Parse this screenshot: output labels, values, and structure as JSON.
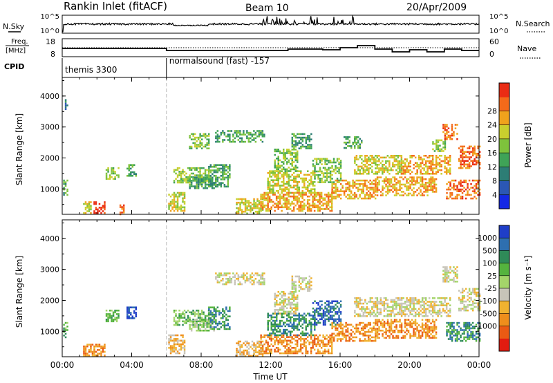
{
  "header": {
    "station": "Rankin Inlet (fitACF)",
    "beam": "Beam 10",
    "date": "20/Apr/2009"
  },
  "status_strip": {
    "nsky_label": "N.Sky",
    "nsky_ticks": [
      "10^5",
      "10^0"
    ],
    "nsearch_label": "N.Search",
    "nsearch_ticks": [
      "10^5",
      "10^0"
    ],
    "freq_label_1": "Freq.",
    "freq_label_2": "[MHz]",
    "freq_ticks": [
      "18",
      "8"
    ],
    "nave_label": "Nave",
    "nave_ticks": [
      "60",
      "0"
    ],
    "cpid_label": "CPID",
    "cpid_segments": [
      {
        "start_hour": 0,
        "end_hour": 6,
        "label": "themis 3300"
      },
      {
        "start_hour": 6,
        "end_hour": 24,
        "label": "normalsound (fast) -157"
      }
    ]
  },
  "chart_data": [
    {
      "type": "heatmap",
      "panel": "power",
      "ylabel": "Slant Range [km]",
      "xlim": [
        0,
        24
      ],
      "ylim": [
        180,
        4600
      ],
      "y_ticks": [
        1000,
        2000,
        3000,
        4000
      ],
      "colorbar": {
        "label": "Power [dB]",
        "ticks": [
          "4",
          "8",
          "12",
          "16",
          "20",
          "24",
          "28"
        ],
        "colors": [
          "#1428e6",
          "#2b57b4",
          "#2d7d75",
          "#3fa357",
          "#7ec23c",
          "#c9cf2e",
          "#f0a21c",
          "#f46a1a",
          "#ea2c14"
        ]
      },
      "regions": [
        {
          "t": [
            0.05,
            0.3
          ],
          "r": [
            800,
            1300
          ],
          "v": 3
        },
        {
          "t": [
            0.15,
            0.3
          ],
          "r": [
            3600,
            3900
          ],
          "v": 2
        },
        {
          "t": [
            1.2,
            1.6
          ],
          "r": [
            200,
            600
          ],
          "v": 5
        },
        {
          "t": [
            1.8,
            2.4
          ],
          "r": [
            200,
            600
          ],
          "v": 8
        },
        {
          "t": [
            2.5,
            3.2
          ],
          "r": [
            1300,
            1700
          ],
          "v": 4
        },
        {
          "t": [
            3.3,
            3.5
          ],
          "r": [
            200,
            500
          ],
          "v": 7
        },
        {
          "t": [
            3.7,
            4.2
          ],
          "r": [
            1400,
            1800
          ],
          "v": 3
        },
        {
          "t": [
            6.1,
            7.0
          ],
          "r": [
            300,
            900
          ],
          "v": 5
        },
        {
          "t": [
            6.4,
            8.4
          ],
          "r": [
            1200,
            1700
          ],
          "v": 4
        },
        {
          "t": [
            7.3,
            8.8
          ],
          "r": [
            1000,
            1400
          ],
          "v": 3
        },
        {
          "t": [
            7.3,
            8.4
          ],
          "r": [
            2300,
            2800
          ],
          "v": 4
        },
        {
          "t": [
            8.4,
            9.6
          ],
          "r": [
            1100,
            1800
          ],
          "v": 3
        },
        {
          "t": [
            8.8,
            11.6
          ],
          "r": [
            2500,
            2900
          ],
          "v": 3
        },
        {
          "t": [
            10.0,
            11.5
          ],
          "r": [
            200,
            700
          ],
          "v": 5
        },
        {
          "t": [
            11.4,
            15.5
          ],
          "r": [
            300,
            900
          ],
          "v": 6
        },
        {
          "t": [
            11.8,
            14.5
          ],
          "r": [
            900,
            1600
          ],
          "v": 5
        },
        {
          "t": [
            12.2,
            13.5
          ],
          "r": [
            1600,
            2300
          ],
          "v": 4
        },
        {
          "t": [
            13.2,
            14.3
          ],
          "r": [
            2300,
            2800
          ],
          "v": 3
        },
        {
          "t": [
            14.4,
            16.0
          ],
          "r": [
            1200,
            2000
          ],
          "v": 4
        },
        {
          "t": [
            15.5,
            18.0
          ],
          "r": [
            700,
            1300
          ],
          "v": 6
        },
        {
          "t": [
            16.2,
            17.2
          ],
          "r": [
            2300,
            2700
          ],
          "v": 3
        },
        {
          "t": [
            16.8,
            19.5
          ],
          "r": [
            1500,
            2100
          ],
          "v": 5
        },
        {
          "t": [
            18.0,
            21.5
          ],
          "r": [
            800,
            1400
          ],
          "v": 6
        },
        {
          "t": [
            19.5,
            22.3
          ],
          "r": [
            1500,
            2100
          ],
          "v": 6
        },
        {
          "t": [
            21.3,
            22.0
          ],
          "r": [
            2200,
            2600
          ],
          "v": 4
        },
        {
          "t": [
            21.9,
            22.7
          ],
          "r": [
            2600,
            3100
          ],
          "v": 7
        },
        {
          "t": [
            22.1,
            24.0
          ],
          "r": [
            700,
            1300
          ],
          "v": 7
        },
        {
          "t": [
            22.8,
            24.0
          ],
          "r": [
            1700,
            2400
          ],
          "v": 7
        }
      ]
    },
    {
      "type": "heatmap",
      "panel": "velocity",
      "xlabel": "Time UT",
      "ylabel": "Slant Range [km]",
      "xlim": [
        0,
        24
      ],
      "ylim": [
        180,
        4600
      ],
      "x_ticks": [
        "00:00",
        "04:00",
        "08:00",
        "12:00",
        "16:00",
        "20:00",
        "00:00"
      ],
      "y_ticks": [
        1000,
        2000,
        3000,
        4000
      ],
      "colorbar": {
        "label": "Velocity [m s⁻¹]",
        "ticks": [
          "1000",
          "500",
          "100",
          "25",
          "-25",
          "-100",
          "-500",
          "-1000"
        ],
        "colors": [
          "#1f3ec8",
          "#2e6fb0",
          "#2f8a58",
          "#55b33e",
          "#a4d46a",
          "#c7c4b8",
          "#f0b230",
          "#ee8e1c",
          "#ea5a14",
          "#e21c10"
        ]
      },
      "regions": [
        {
          "t": [
            0.05,
            0.3
          ],
          "r": [
            800,
            1300
          ],
          "v": 3
        },
        {
          "t": [
            1.2,
            2.4
          ],
          "r": [
            200,
            600
          ],
          "v": 7
        },
        {
          "t": [
            2.5,
            3.2
          ],
          "r": [
            1300,
            1700
          ],
          "v": 3
        },
        {
          "t": [
            3.7,
            4.2
          ],
          "r": [
            1400,
            1800
          ],
          "v": 0
        },
        {
          "t": [
            6.1,
            7.0
          ],
          "r": [
            300,
            900
          ],
          "v": 6
        },
        {
          "t": [
            6.4,
            8.4
          ],
          "r": [
            1200,
            1700
          ],
          "v": 3
        },
        {
          "t": [
            7.3,
            8.8
          ],
          "r": [
            1000,
            1400
          ],
          "v": 4
        },
        {
          "t": [
            8.4,
            9.6
          ],
          "r": [
            1100,
            1800
          ],
          "v": 2
        },
        {
          "t": [
            8.8,
            11.6
          ],
          "r": [
            2500,
            2900
          ],
          "v": 5
        },
        {
          "t": [
            10.0,
            11.5
          ],
          "r": [
            200,
            700
          ],
          "v": 6
        },
        {
          "t": [
            11.4,
            15.5
          ],
          "r": [
            300,
            900
          ],
          "v": 7
        },
        {
          "t": [
            11.8,
            14.5
          ],
          "r": [
            900,
            1600
          ],
          "v": 2
        },
        {
          "t": [
            12.2,
            13.5
          ],
          "r": [
            1600,
            2300
          ],
          "v": 5
        },
        {
          "t": [
            13.2,
            14.3
          ],
          "r": [
            2300,
            2800
          ],
          "v": 5
        },
        {
          "t": [
            14.4,
            16.0
          ],
          "r": [
            1200,
            2000
          ],
          "v": 1
        },
        {
          "t": [
            15.5,
            18.0
          ],
          "r": [
            700,
            1300
          ],
          "v": 7
        },
        {
          "t": [
            16.8,
            19.5
          ],
          "r": [
            1500,
            2100
          ],
          "v": 5
        },
        {
          "t": [
            18.0,
            21.5
          ],
          "r": [
            800,
            1400
          ],
          "v": 7
        },
        {
          "t": [
            19.5,
            22.3
          ],
          "r": [
            1500,
            2100
          ],
          "v": 5
        },
        {
          "t": [
            21.9,
            22.7
          ],
          "r": [
            2600,
            3100
          ],
          "v": 5
        },
        {
          "t": [
            22.1,
            24.0
          ],
          "r": [
            700,
            1300
          ],
          "v": 2
        },
        {
          "t": [
            22.8,
            24.0
          ],
          "r": [
            1700,
            2400
          ],
          "v": 5
        }
      ]
    }
  ]
}
